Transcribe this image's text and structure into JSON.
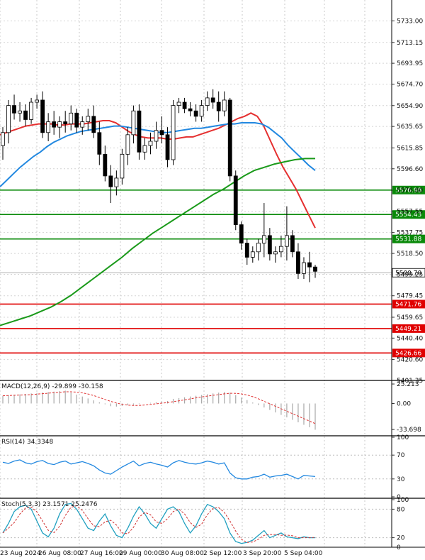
{
  "chart_data": {
    "type": "candlestick",
    "x_labels": [
      "23 Aug 2024",
      "26 Aug 08:00",
      "27 Aug 16:00",
      "29 Aug 00:00",
      "30 Aug 08:00",
      "2 Sep 12:00",
      "3 Sep 20:00",
      "5 Sep 04:00"
    ],
    "price_ticks": [
      "5733.00",
      "5713.15",
      "5693.95",
      "5674.70",
      "5654.90",
      "5635.65",
      "5615.85",
      "5596.60",
      "5576.80",
      "5557.55",
      "5537.75",
      "5518.50",
      "5499.25",
      "5479.45",
      "5459.65",
      "5440.40",
      "5420.60",
      "5401.35"
    ],
    "price_range": [
      5401.35,
      5752.3
    ],
    "current_price": "5500.70",
    "levels": [
      {
        "label": "5576.98",
        "value": 5576.98,
        "color": "#0a8a0a"
      },
      {
        "label": "5554.43",
        "value": 5554.43,
        "color": "#0a8a0a"
      },
      {
        "label": "5531.88",
        "value": 5531.88,
        "color": "#0a8a0a"
      },
      {
        "label": "5471.76",
        "value": 5471.76,
        "color": "#e00000"
      },
      {
        "label": "5449.21",
        "value": 5449.21,
        "color": "#e00000"
      },
      {
        "label": "5426.66",
        "value": 5426.66,
        "color": "#e00000"
      }
    ],
    "candles": [
      [
        5618,
        5635,
        5605,
        5630
      ],
      [
        5630,
        5660,
        5620,
        5655
      ],
      [
        5655,
        5665,
        5642,
        5648
      ],
      [
        5648,
        5658,
        5640,
        5650
      ],
      [
        5650,
        5656,
        5636,
        5642
      ],
      [
        5642,
        5662,
        5638,
        5658
      ],
      [
        5658,
        5665,
        5652,
        5660
      ],
      [
        5660,
        5668,
        5625,
        5630
      ],
      [
        5630,
        5648,
        5622,
        5640
      ],
      [
        5640,
        5650,
        5628,
        5635
      ],
      [
        5635,
        5645,
        5625,
        5640
      ],
      [
        5640,
        5650,
        5630,
        5638
      ],
      [
        5638,
        5655,
        5632,
        5648
      ],
      [
        5648,
        5652,
        5630,
        5635
      ],
      [
        5635,
        5645,
        5628,
        5640
      ],
      [
        5640,
        5652,
        5632,
        5645
      ],
      [
        5645,
        5655,
        5625,
        5630
      ],
      [
        5630,
        5640,
        5600,
        5610
      ],
      [
        5610,
        5618,
        5585,
        5590
      ],
      [
        5590,
        5600,
        5565,
        5580
      ],
      [
        5580,
        5595,
        5572,
        5588
      ],
      [
        5588,
        5615,
        5582,
        5610
      ],
      [
        5610,
        5635,
        5600,
        5628
      ],
      [
        5628,
        5655,
        5620,
        5650
      ],
      [
        5650,
        5656,
        5605,
        5612
      ],
      [
        5612,
        5625,
        5605,
        5618
      ],
      [
        5618,
        5630,
        5610,
        5622
      ],
      [
        5622,
        5640,
        5615,
        5632
      ],
      [
        5632,
        5645,
        5620,
        5628
      ],
      [
        5628,
        5635,
        5598,
        5605
      ],
      [
        5605,
        5660,
        5600,
        5655
      ],
      [
        5655,
        5662,
        5648,
        5658
      ],
      [
        5658,
        5662,
        5648,
        5652
      ],
      [
        5652,
        5658,
        5645,
        5650
      ],
      [
        5650,
        5656,
        5640,
        5645
      ],
      [
        5645,
        5660,
        5640,
        5655
      ],
      [
        5655,
        5668,
        5650,
        5662
      ],
      [
        5662,
        5670,
        5652,
        5658
      ],
      [
        5658,
        5668,
        5640,
        5650
      ],
      [
        5650,
        5668,
        5645,
        5660
      ],
      [
        5660,
        5662,
        5585,
        5590
      ],
      [
        5590,
        5595,
        5540,
        5545
      ],
      [
        5545,
        5548,
        5522,
        5528
      ],
      [
        5528,
        5532,
        5508,
        5515
      ],
      [
        5515,
        5525,
        5510,
        5520
      ],
      [
        5520,
        5532,
        5512,
        5528
      ],
      [
        5528,
        5565,
        5515,
        5535
      ],
      [
        5535,
        5542,
        5512,
        5518
      ],
      [
        5518,
        5525,
        5510,
        5520
      ],
      [
        5520,
        5535,
        5515,
        5525
      ],
      [
        5525,
        5562,
        5512,
        5535
      ],
      [
        5535,
        5540,
        5515,
        5520
      ],
      [
        5520,
        5528,
        5495,
        5500
      ],
      [
        5500,
        5515,
        5495,
        5510
      ],
      [
        5510,
        5520,
        5492,
        5506
      ],
      [
        5506,
        5508,
        5496,
        5502
      ]
    ],
    "ma_series": [
      {
        "color": "#e53030",
        "values": [
          5628,
          5630,
          5632,
          5634,
          5636,
          5637,
          5638,
          5638,
          5638,
          5637,
          5637,
          5638,
          5638,
          5638,
          5639,
          5640,
          5641,
          5641,
          5639,
          5635,
          5631,
          5628,
          5626,
          5625,
          5625,
          5625,
          5624,
          5624,
          5625,
          5626,
          5626,
          5628,
          5630,
          5632,
          5634,
          5637,
          5640,
          5643,
          5645,
          5648,
          5645,
          5636,
          5623,
          5610,
          5598,
          5588,
          5578,
          5566,
          5554,
          5542
        ]
      },
      {
        "color": "#2288e0",
        "values": [
          5580,
          5586,
          5592,
          5598,
          5603,
          5608,
          5612,
          5617,
          5621,
          5624,
          5627,
          5629,
          5631,
          5632,
          5633,
          5634,
          5635,
          5636,
          5636,
          5635,
          5634,
          5633,
          5632,
          5631,
          5630,
          5630,
          5631,
          5632,
          5633,
          5634,
          5634,
          5635,
          5636,
          5637,
          5638,
          5638,
          5639,
          5639,
          5639,
          5638,
          5635,
          5630,
          5625,
          5618,
          5612,
          5606,
          5600,
          5595
        ]
      },
      {
        "color": "#1a9a1a",
        "values": [
          5452,
          5455,
          5458,
          5461,
          5465,
          5469,
          5474,
          5480,
          5487,
          5494,
          5501,
          5508,
          5515,
          5523,
          5530,
          5537,
          5543,
          5549,
          5555,
          5561,
          5567,
          5573,
          5578,
          5584,
          5590,
          5595,
          5598,
          5601,
          5603,
          5605,
          5606,
          5606
        ]
      }
    ],
    "macd": {
      "label": "MACD(12,26,9) -29.899 -30.158",
      "ticks": [
        "25.213",
        "0.00",
        "-33.698"
      ]
    },
    "rsi": {
      "label": "RSI(14) 34.3348",
      "ticks": [
        "100",
        "70",
        "30",
        "0"
      ]
    },
    "stoch": {
      "label": "Stoch(5,3,3) 23.1571 25.2476",
      "ticks": [
        "100",
        "80",
        "20",
        "0"
      ]
    }
  }
}
